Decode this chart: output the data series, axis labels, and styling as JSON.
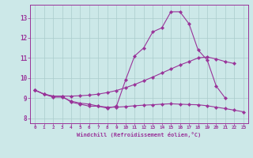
{
  "xlabel": "Windchill (Refroidissement éolien,°C)",
  "background_color": "#cce8e8",
  "grid_color": "#aacccc",
  "line_color": "#993399",
  "xlim": [
    -0.5,
    23.5
  ],
  "ylim": [
    7.75,
    13.65
  ],
  "xtick_vals": [
    0,
    1,
    2,
    3,
    4,
    5,
    6,
    7,
    8,
    9,
    10,
    11,
    12,
    13,
    14,
    15,
    16,
    17,
    18,
    19,
    20,
    21,
    22,
    23
  ],
  "ytick_vals": [
    8,
    9,
    10,
    11,
    12,
    13
  ],
  "line1_x": [
    0,
    1,
    2,
    3,
    4,
    5,
    6,
    7,
    8,
    9,
    10,
    11,
    12,
    13,
    14,
    15,
    16,
    17,
    18,
    19,
    20,
    21
  ],
  "line1_y": [
    9.4,
    9.2,
    9.1,
    9.1,
    8.8,
    8.7,
    8.6,
    8.6,
    8.5,
    8.6,
    9.9,
    11.1,
    11.5,
    12.3,
    12.5,
    13.3,
    13.3,
    12.7,
    11.4,
    10.9,
    9.6,
    9.0
  ],
  "line2_x": [
    0,
    1,
    2,
    3,
    4,
    5,
    6,
    7,
    8,
    9,
    10,
    11,
    12,
    13,
    14,
    15,
    16,
    17,
    18,
    19,
    20,
    21,
    22,
    23
  ],
  "line2_y": [
    9.4,
    9.2,
    9.05,
    9.05,
    8.85,
    8.75,
    8.7,
    8.6,
    8.55,
    8.55,
    8.58,
    8.62,
    8.65,
    8.67,
    8.7,
    8.72,
    8.7,
    8.68,
    8.67,
    8.62,
    8.55,
    8.48,
    8.4,
    8.32
  ],
  "line3_x": [
    0,
    1,
    2,
    3,
    4,
    5,
    6,
    7,
    8,
    9,
    10,
    11,
    12,
    13,
    14,
    15,
    16,
    17,
    18,
    19,
    20,
    21,
    22
  ],
  "line3_y": [
    9.4,
    9.2,
    9.1,
    9.1,
    9.1,
    9.12,
    9.15,
    9.2,
    9.28,
    9.38,
    9.52,
    9.68,
    9.86,
    10.05,
    10.25,
    10.45,
    10.65,
    10.82,
    11.0,
    11.05,
    10.95,
    10.82,
    10.72
  ]
}
